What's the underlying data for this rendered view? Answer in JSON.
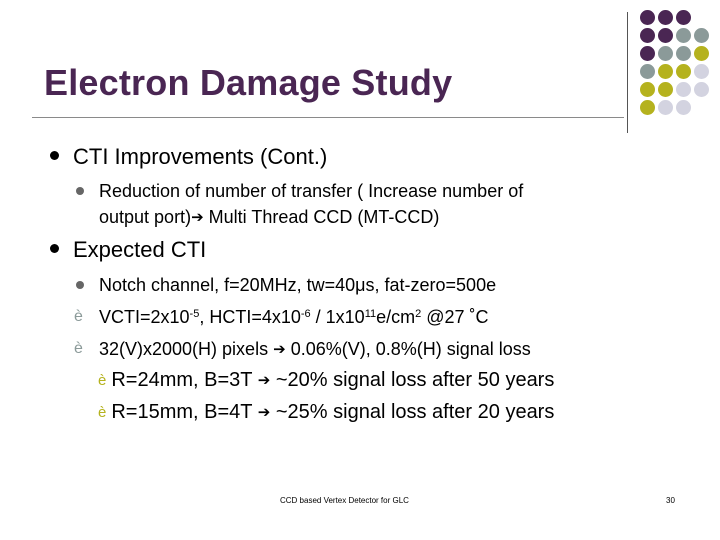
{
  "slide": {
    "title": "Electron Damage Study",
    "colors": {
      "title": "#4a2653",
      "purple": "#4a2653",
      "teal_gray": "#8b9a99",
      "olive": "#b5b21e",
      "lavender": "#d3d3e0"
    },
    "bullets": {
      "b1": "CTI Improvements (Cont.)",
      "b1_1_line1": "Reduction of number of transfer ( Increase number of",
      "b1_1_line2_a": "output port)",
      "b1_1_line2_b": "Multi Thread CCD (MT-CCD)",
      "b2": "Expected CTI",
      "b2_1": "Notch channel, f=20MHz, tw=40μs, fat-zero=500e",
      "b2_2": {
        "p1": "VCTI=2x10",
        "s1": "-5",
        "p2": ",  HCTI=4x10",
        "s2": "-6",
        "p3": " / 1x10",
        "s3": "11",
        "p4": "e/cm",
        "s4": "2",
        "p5": " @27 ˚C"
      },
      "b2_3_a": "32(V)x2000(H) pixels",
      "b2_3_b": "0.06%(V), 0.8%(H) signal loss",
      "b3_1_a": "R=24mm, B=3T",
      "b3_1_b": "~20% signal loss after 50 years",
      "b3_2_a": "R=15mm, B=4T",
      "b3_2_b": "~25% signal loss after 20 years"
    },
    "icons": {
      "arrow": "➔",
      "small_arrow": "è"
    },
    "footer": {
      "text": "CCD based Vertex Detector for GLC",
      "page_number": "30"
    }
  }
}
